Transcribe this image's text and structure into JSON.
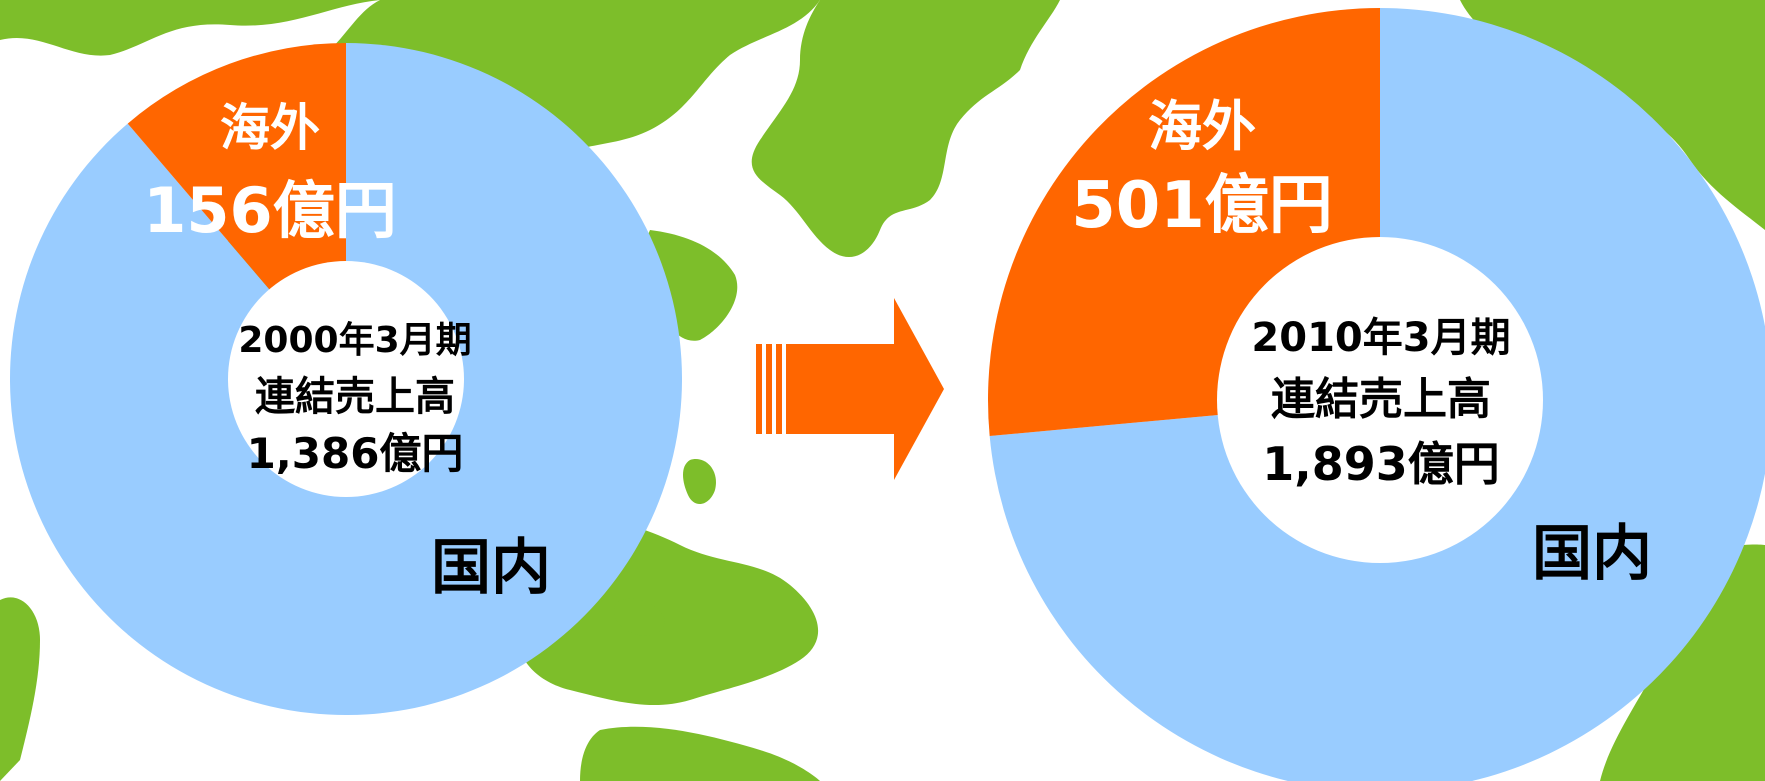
{
  "colors": {
    "overseas": "#FF6600",
    "domestic": "#99CCFF",
    "land": "#7DBE2A",
    "arrow": "#FF6600",
    "center": "#FFFFFF"
  },
  "chart_data": [
    {
      "type": "pie",
      "variant": "donut",
      "period": "2000年3月期",
      "metric": "連結売上高",
      "total": 1386,
      "total_label": "1,386億円",
      "unit": "億円",
      "slices": [
        {
          "label": "海外",
          "value": 156,
          "value_label": "156億円",
          "color": "#FF6600"
        },
        {
          "label": "国内",
          "value": 1230,
          "color": "#99CCFF"
        }
      ]
    },
    {
      "type": "pie",
      "variant": "donut",
      "period": "2010年3月期",
      "metric": "連結売上高",
      "total": 1893,
      "total_label": "1,893億円",
      "unit": "億円",
      "slices": [
        {
          "label": "海外",
          "value": 501,
          "value_label": "501億円",
          "color": "#FF6600"
        },
        {
          "label": "国内",
          "value": 1392,
          "color": "#99CCFF"
        }
      ]
    }
  ],
  "arrow": {
    "direction": "right",
    "icon": "arrow-right-icon"
  },
  "background": {
    "icon": "world-map-icon"
  }
}
